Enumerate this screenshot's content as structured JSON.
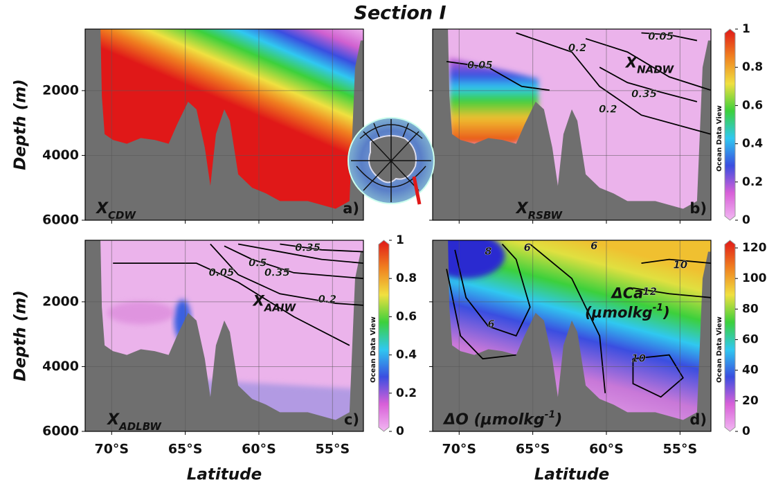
{
  "title": "Section I",
  "chart_data": [
    {
      "type": "section",
      "panel_label": "a)",
      "variable_label": [
        {
          "text": "X"
        },
        {
          "text": "CDW",
          "sub": true
        }
      ],
      "ylabel": "Depth (m)",
      "xlim": [
        -71.8,
        -52.9
      ],
      "xticks": [
        {
          "value": -70,
          "label": "70°S"
        },
        {
          "value": -65,
          "label": "65°S"
        },
        {
          "value": -60,
          "label": "60°S"
        },
        {
          "value": -55,
          "label": "55°S"
        }
      ],
      "ylim": [
        100,
        6000
      ],
      "y_inverted": true,
      "yticks": [
        2000,
        4000,
        6000
      ],
      "grid": true,
      "show_x_tick_labels": false,
      "show_y_tick_labels": true
    },
    {
      "type": "section",
      "panel_label": "b)",
      "variable_label": [
        {
          "text": "X"
        },
        {
          "text": "RSBW",
          "sub": true
        }
      ],
      "field_label_lines": [
        [
          {
            "text": "X"
          },
          {
            "text": "NADW",
            "sub": true
          }
        ]
      ],
      "contour_labels": [
        0.05,
        0.2,
        0.05,
        0.35,
        0.2
      ],
      "xlim": [
        -71.8,
        -52.9
      ],
      "xticks": [
        {
          "value": -70,
          "label": "70°S"
        },
        {
          "value": -65,
          "label": "65°S"
        },
        {
          "value": -60,
          "label": "60°S"
        },
        {
          "value": -55,
          "label": "55°S"
        }
      ],
      "ylim": [
        100,
        6000
      ],
      "y_inverted": true,
      "yticks": [
        2000,
        4000,
        6000
      ],
      "grid": true,
      "show_x_tick_labels": false,
      "show_y_tick_labels": false
    },
    {
      "type": "section",
      "panel_label": "c)",
      "variable_label": [
        {
          "text": "X"
        },
        {
          "text": "ADLBW",
          "sub": true
        }
      ],
      "field_label_lines": [
        [
          {
            "text": "X"
          },
          {
            "text": "AAIW",
            "sub": true
          }
        ]
      ],
      "contour_labels": [
        0.35,
        0.5,
        0.35,
        0.05,
        0.2
      ],
      "ylabel": "Depth (m)",
      "xlabel": "Latitude",
      "xlim": [
        -71.8,
        -52.9
      ],
      "xticks": [
        {
          "value": -70,
          "label": "70°S"
        },
        {
          "value": -65,
          "label": "65°S"
        },
        {
          "value": -60,
          "label": "60°S"
        },
        {
          "value": -55,
          "label": "55°S"
        }
      ],
      "ylim": [
        100,
        6000
      ],
      "y_inverted": true,
      "yticks": [
        2000,
        4000,
        6000
      ],
      "grid": true,
      "show_x_tick_labels": true,
      "show_y_tick_labels": true
    },
    {
      "type": "section",
      "panel_label": "d)",
      "variable_label": [
        {
          "text": "ΔO (µmolkg"
        },
        {
          "text": "-1",
          "sup": true
        },
        {
          "text": ")"
        }
      ],
      "field_label_lines": [
        [
          {
            "text": "ΔCa"
          }
        ],
        [
          {
            "text": "(µmolkg"
          },
          {
            "text": "-1",
            "sup": true
          },
          {
            "text": ")"
          }
        ]
      ],
      "contour_labels": [
        8,
        6,
        6,
        10,
        12,
        6,
        10
      ],
      "xlabel": "Latitude",
      "xlim": [
        -71.8,
        -52.9
      ],
      "xticks": [
        {
          "value": -70,
          "label": "70°S"
        },
        {
          "value": -65,
          "label": "65°S"
        },
        {
          "value": -60,
          "label": "60°S"
        },
        {
          "value": -55,
          "label": "55°S"
        }
      ],
      "ylim": [
        100,
        6000
      ],
      "y_inverted": true,
      "yticks": [
        2000,
        4000,
        6000
      ],
      "grid": true,
      "show_x_tick_labels": true,
      "show_y_tick_labels": false
    }
  ],
  "colorbars": [
    {
      "label": "Ocean Data View",
      "lim": [
        0,
        1
      ],
      "ticks": [
        0,
        0.2,
        0.4,
        0.6,
        0.8,
        1
      ],
      "colors": [
        "#f2b8f2",
        "#d860d8",
        "#3a4ee0",
        "#30c8f0",
        "#3cd03c",
        "#f0e040",
        "#f08020",
        "#e01818"
      ]
    },
    {
      "label": "Ocean Data View",
      "lim": [
        0,
        1
      ],
      "ticks": [
        0,
        0.2,
        0.4,
        0.6,
        0.8,
        1
      ],
      "colors": [
        "#f2b8f2",
        "#d860d8",
        "#3a4ee0",
        "#30c8f0",
        "#3cd03c",
        "#f0e040",
        "#f08020",
        "#e01818"
      ]
    },
    {
      "label": "Ocean Data View",
      "lim": [
        0,
        125
      ],
      "ticks": [
        0,
        20,
        40,
        60,
        80,
        100,
        120
      ],
      "colors": [
        "#f2b8f2",
        "#d860d8",
        "#3a4ee0",
        "#30c8f0",
        "#3cd03c",
        "#f0e040",
        "#f08020",
        "#e01818"
      ]
    }
  ]
}
